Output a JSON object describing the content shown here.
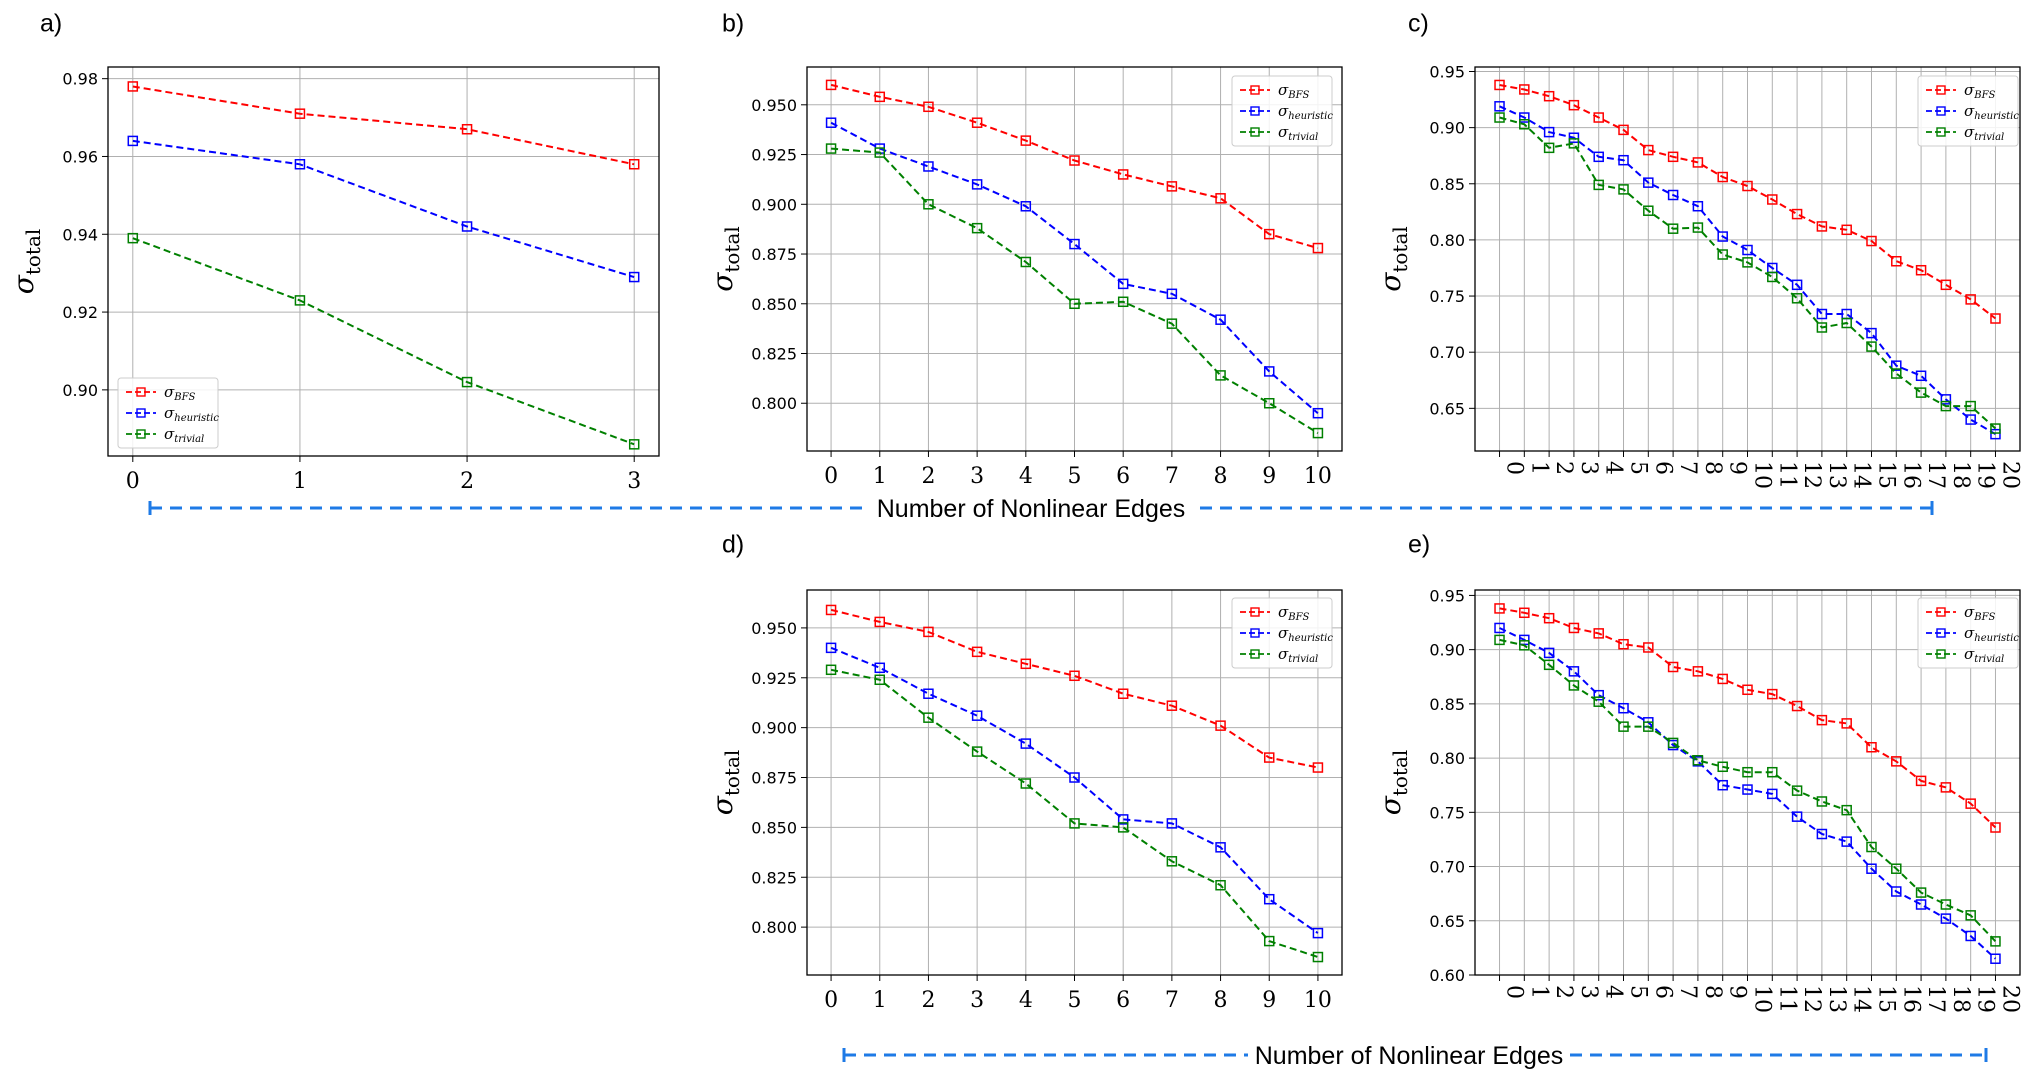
{
  "colors": {
    "bfs": "#ff0000",
    "heuristic": "#0000ff",
    "trivial": "#008000",
    "grid": "#b0b0b0",
    "arrow": "#1e7ae6"
  },
  "x_caption_top": "Number of Nonlinear Edges",
  "x_caption_bottom": "Number of Nonlinear Edges",
  "chart_data": [
    {
      "panel": "a)",
      "type": "line",
      "x": [
        0,
        1,
        2,
        3
      ],
      "ylim": [
        0.883,
        0.983
      ],
      "yticks": [
        "0.90",
        "0.92",
        "0.94",
        "0.96",
        "0.98"
      ],
      "ylabel": {
        "sym": "σ",
        "sub": "total"
      },
      "legend_position": "lower-left",
      "series": [
        {
          "sym": "σ",
          "sub": "BFS",
          "values": [
            0.978,
            0.971,
            0.967,
            0.958
          ]
        },
        {
          "sym": "σ",
          "sub": "heuristic",
          "values": [
            0.964,
            0.958,
            0.942,
            0.929
          ]
        },
        {
          "sym": "σ",
          "sub": "trivial",
          "values": [
            0.939,
            0.923,
            0.902,
            0.886
          ]
        }
      ]
    },
    {
      "panel": "b)",
      "type": "line",
      "x": [
        0,
        1,
        2,
        3,
        4,
        5,
        6,
        7,
        8,
        9,
        10
      ],
      "ylim": [
        0.776,
        0.969
      ],
      "yticks": [
        "0.800",
        "0.825",
        "0.850",
        "0.875",
        "0.900",
        "0.925",
        "0.950"
      ],
      "ylabel": {
        "sym": "σ",
        "sub": "total"
      },
      "legend_position": "upper-right",
      "series": [
        {
          "sym": "σ",
          "sub": "BFS",
          "values": [
            0.96,
            0.954,
            0.949,
            0.941,
            0.932,
            0.922,
            0.915,
            0.909,
            0.903,
            0.885,
            0.878
          ]
        },
        {
          "sym": "σ",
          "sub": "heuristic",
          "values": [
            0.941,
            0.928,
            0.919,
            0.91,
            0.899,
            0.88,
            0.86,
            0.855,
            0.842,
            0.816,
            0.795
          ]
        },
        {
          "sym": "σ",
          "sub": "trivial",
          "values": [
            0.928,
            0.926,
            0.9,
            0.888,
            0.871,
            0.85,
            0.851,
            0.84,
            0.814,
            0.8,
            0.785
          ]
        }
      ]
    },
    {
      "panel": "c)",
      "type": "line",
      "x": [
        0,
        1,
        2,
        3,
        4,
        5,
        6,
        7,
        8,
        9,
        10,
        11,
        12,
        13,
        14,
        15,
        16,
        17,
        18,
        19,
        20
      ],
      "ylim": [
        0.612,
        0.954
      ],
      "yticks": [
        "0.65",
        "0.70",
        "0.75",
        "0.80",
        "0.85",
        "0.90",
        "0.95"
      ],
      "ylabel": {
        "sym": "σ",
        "sub": "total"
      },
      "legend_position": "upper-right",
      "series": [
        {
          "sym": "σ",
          "sub": "BFS",
          "values": [
            0.938,
            0.934,
            0.928,
            0.92,
            0.909,
            0.898,
            0.88,
            0.874,
            0.869,
            0.856,
            0.848,
            0.836,
            0.823,
            0.812,
            0.809,
            0.799,
            0.781,
            0.773,
            0.76,
            0.747,
            0.73
          ]
        },
        {
          "sym": "σ",
          "sub": "heuristic",
          "values": [
            0.919,
            0.909,
            0.896,
            0.891,
            0.874,
            0.871,
            0.851,
            0.84,
            0.83,
            0.803,
            0.791,
            0.775,
            0.76,
            0.734,
            0.734,
            0.717,
            0.688,
            0.679,
            0.658,
            0.64,
            0.627
          ]
        },
        {
          "sym": "σ",
          "sub": "trivial",
          "values": [
            0.909,
            0.903,
            0.882,
            0.886,
            0.849,
            0.845,
            0.826,
            0.81,
            0.811,
            0.787,
            0.78,
            0.767,
            0.748,
            0.722,
            0.726,
            0.705,
            0.681,
            0.664,
            0.652,
            0.652,
            0.632
          ]
        }
      ]
    },
    {
      "panel": "d)",
      "type": "line",
      "x": [
        0,
        1,
        2,
        3,
        4,
        5,
        6,
        7,
        8,
        9,
        10
      ],
      "ylim": [
        0.776,
        0.969
      ],
      "yticks": [
        "0.800",
        "0.825",
        "0.850",
        "0.875",
        "0.900",
        "0.925",
        "0.950"
      ],
      "ylabel": {
        "sym": "σ",
        "sub": "total"
      },
      "legend_position": "upper-right",
      "series": [
        {
          "sym": "σ",
          "sub": "BFS",
          "values": [
            0.959,
            0.953,
            0.948,
            0.938,
            0.932,
            0.926,
            0.917,
            0.911,
            0.901,
            0.885,
            0.88
          ]
        },
        {
          "sym": "σ",
          "sub": "heuristic",
          "values": [
            0.94,
            0.93,
            0.917,
            0.906,
            0.892,
            0.875,
            0.854,
            0.852,
            0.84,
            0.814,
            0.797
          ]
        },
        {
          "sym": "σ",
          "sub": "trivial",
          "values": [
            0.929,
            0.924,
            0.905,
            0.888,
            0.872,
            0.852,
            0.85,
            0.833,
            0.821,
            0.793,
            0.785
          ]
        }
      ]
    },
    {
      "panel": "e)",
      "type": "line",
      "x": [
        0,
        1,
        2,
        3,
        4,
        5,
        6,
        7,
        8,
        9,
        10,
        11,
        12,
        13,
        14,
        15,
        16,
        17,
        18,
        19,
        20
      ],
      "ylim": [
        0.6,
        0.955
      ],
      "yticks": [
        "0.60",
        "0.65",
        "0.70",
        "0.75",
        "0.80",
        "0.85",
        "0.90",
        "0.95"
      ],
      "ylabel": {
        "sym": "σ",
        "sub": "total"
      },
      "legend_position": "upper-right",
      "series": [
        {
          "sym": "σ",
          "sub": "BFS",
          "values": [
            0.938,
            0.934,
            0.929,
            0.92,
            0.915,
            0.905,
            0.902,
            0.884,
            0.88,
            0.873,
            0.863,
            0.859,
            0.848,
            0.835,
            0.832,
            0.81,
            0.797,
            0.779,
            0.773,
            0.758,
            0.736
          ]
        },
        {
          "sym": "σ",
          "sub": "heuristic",
          "values": [
            0.92,
            0.909,
            0.897,
            0.88,
            0.858,
            0.846,
            0.833,
            0.812,
            0.797,
            0.775,
            0.771,
            0.767,
            0.746,
            0.73,
            0.723,
            0.698,
            0.677,
            0.665,
            0.652,
            0.636,
            0.615
          ]
        },
        {
          "sym": "σ",
          "sub": "trivial",
          "values": [
            0.909,
            0.904,
            0.886,
            0.867,
            0.852,
            0.829,
            0.829,
            0.814,
            0.798,
            0.792,
            0.787,
            0.787,
            0.77,
            0.76,
            0.752,
            0.718,
            0.698,
            0.676,
            0.665,
            0.655,
            0.631
          ]
        }
      ]
    }
  ]
}
